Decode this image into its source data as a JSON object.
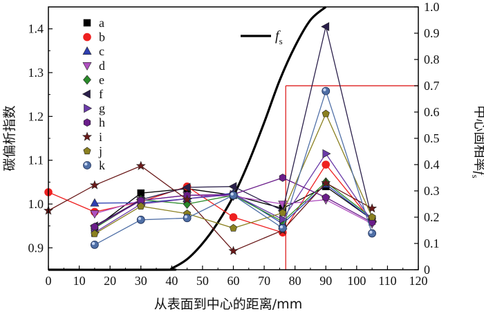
{
  "chart_data": {
    "type": "line",
    "xlabel": "从表面到中心的距离/mm",
    "ylabel_left": "碳偏析指数",
    "ylabel_right_text": "中心固相率",
    "ylabel_right_var": "f",
    "ylabel_right_sub": "s",
    "xlim": [
      0,
      120
    ],
    "ylim_left": [
      0.85,
      1.45
    ],
    "ylim_right": [
      0,
      1.0
    ],
    "xticks": [
      "0",
      "10",
      "20",
      "30",
      "40",
      "50",
      "60",
      "70",
      "80",
      "90",
      "100",
      "110",
      "120"
    ],
    "yticks_left": [
      "0.9",
      "1.0",
      "1.1",
      "1.2",
      "1.3",
      "1.4"
    ],
    "yticks_right": [
      "0",
      "0.1",
      "0.2",
      "0.3",
      "0.4",
      "0.5",
      "0.6",
      "0.7",
      "0.8",
      "0.9",
      "1.0"
    ],
    "grid": false,
    "legend_position": "top-left",
    "fs_legend": {
      "var": "f",
      "sub": "s",
      "color": "#000000"
    },
    "fs_curve": {
      "x": [
        0,
        38,
        40,
        45,
        50,
        55,
        60,
        65,
        70,
        75,
        80,
        85,
        90
      ],
      "y": [
        0.0,
        0.0,
        0.005,
        0.04,
        0.1,
        0.18,
        0.28,
        0.41,
        0.56,
        0.72,
        0.85,
        0.95,
        1.0
      ]
    },
    "marker_line": {
      "x": 77,
      "fs": 0.7,
      "color": "#e03030"
    },
    "series": [
      {
        "name": "a",
        "marker": "square",
        "color": "#000000",
        "x": [
          15,
          30,
          45,
          60,
          76,
          90,
          105
        ],
        "y": [
          0.945,
          1.025,
          1.035,
          1.02,
          0.99,
          1.04,
          0.965
        ]
      },
      {
        "name": "b",
        "marker": "circle",
        "color": "#ee2020",
        "x": [
          0,
          15,
          30,
          45,
          60,
          76,
          90,
          105
        ],
        "y": [
          1.027,
          0.982,
          1.005,
          1.04,
          0.97,
          0.935,
          1.09,
          0.96
        ]
      },
      {
        "name": "c",
        "marker": "triangle-up",
        "color": "#2e3fb0",
        "x": [
          15,
          30,
          45,
          60,
          76,
          90,
          105
        ],
        "y": [
          1.002,
          1.003,
          1.012,
          1.025,
          0.955,
          1.045,
          0.965
        ]
      },
      {
        "name": "d",
        "marker": "triangle-down",
        "color": "#b050c0",
        "x": [
          15,
          30,
          45,
          60,
          76,
          90,
          105
        ],
        "y": [
          0.978,
          1.008,
          1.02,
          1.018,
          1.0,
          1.01,
          0.955
        ]
      },
      {
        "name": "e",
        "marker": "diamond",
        "color": "#2a8a2a",
        "x": [
          15,
          30,
          45,
          60,
          76,
          90,
          105
        ],
        "y": [
          0.945,
          1.01,
          1.0,
          1.02,
          0.96,
          1.05,
          0.968
        ]
      },
      {
        "name": "f",
        "marker": "triangle-left",
        "color": "#2a1f4a",
        "x": [
          15,
          30,
          45,
          60,
          76,
          90,
          105
        ],
        "y": [
          0.95,
          1.01,
          1.038,
          1.04,
          0.985,
          1.405,
          0.965
        ]
      },
      {
        "name": "g",
        "marker": "triangle-right",
        "color": "#6a3aa8",
        "x": [
          15,
          30,
          45,
          60,
          76,
          90,
          105
        ],
        "y": [
          0.935,
          1.0,
          1.012,
          1.022,
          0.965,
          1.115,
          0.96
        ]
      },
      {
        "name": "h",
        "marker": "hexagon",
        "color": "#6a1d8a",
        "x": [
          15,
          30,
          45,
          60,
          76,
          90,
          105
        ],
        "y": [
          0.948,
          1.008,
          1.02,
          1.022,
          1.06,
          1.015,
          0.958
        ]
      },
      {
        "name": "i",
        "marker": "star",
        "color": "#6a1a1a",
        "x": [
          0,
          15,
          30,
          45,
          60,
          76,
          90,
          105
        ],
        "y": [
          0.985,
          1.043,
          1.087,
          1.01,
          0.893,
          0.94,
          1.048,
          0.99
        ]
      },
      {
        "name": "j",
        "marker": "pentagon",
        "color": "#8a8020",
        "x": [
          15,
          30,
          45,
          60,
          76,
          90,
          105
        ],
        "y": [
          0.932,
          0.995,
          0.978,
          0.945,
          0.98,
          1.206,
          0.97
        ]
      },
      {
        "name": "k",
        "marker": "sphere",
        "color": "#4f6fa6",
        "x": [
          15,
          30,
          45,
          60,
          76,
          90,
          105
        ],
        "y": [
          0.907,
          0.964,
          0.968,
          1.02,
          0.945,
          1.258,
          0.933
        ]
      }
    ]
  }
}
